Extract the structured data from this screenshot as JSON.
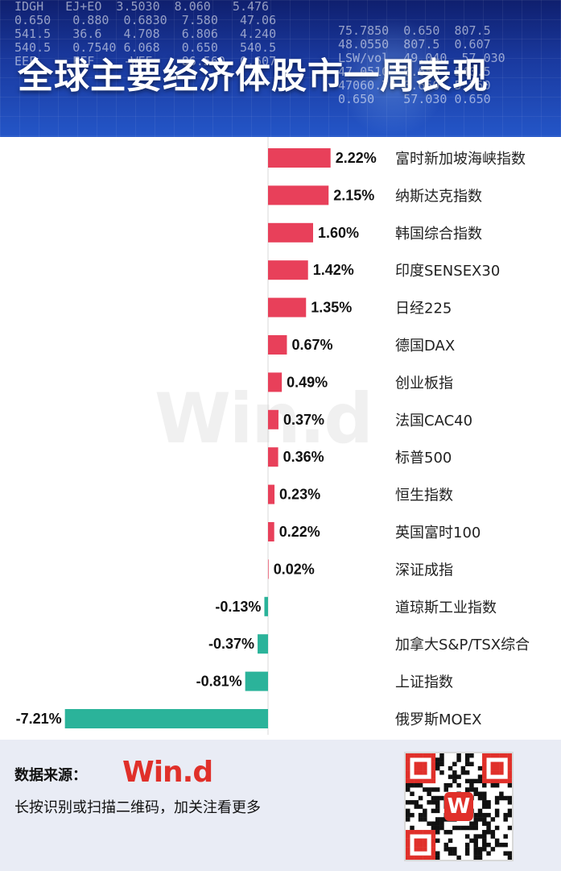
{
  "header": {
    "title": "全球主要经济体股市一周表现"
  },
  "watermark": "Win.d",
  "colors": {
    "positive": "#e8405a",
    "negative": "#2bb39a",
    "header_bg": "#1a3aa0",
    "brand": "#e0302a"
  },
  "chart_data": {
    "type": "bar",
    "orientation": "horizontal",
    "categories": [
      "富时新加坡海峡指数",
      "纳斯达克指数",
      "韩国综合指数",
      "印度SENSEX30",
      "日经225",
      "德国DAX",
      "创业板指",
      "法国CAC40",
      "标普500",
      "恒生指数",
      "英国富时100",
      "深证成指",
      "道琼斯工业指数",
      "加拿大S&P/TSX综合",
      "上证指数",
      "俄罗斯MOEX"
    ],
    "values": [
      2.22,
      2.15,
      1.6,
      1.42,
      1.35,
      0.67,
      0.49,
      0.37,
      0.36,
      0.23,
      0.22,
      0.02,
      -0.13,
      -0.37,
      -0.81,
      -7.21
    ],
    "labels": [
      "2.22%",
      "2.15%",
      "1.60%",
      "1.42%",
      "1.35%",
      "0.67%",
      "0.49%",
      "0.37%",
      "0.36%",
      "0.23%",
      "0.22%",
      "0.02%",
      "-0.13%",
      "-0.37%",
      "-0.81%",
      "-7.21%"
    ],
    "title": "",
    "xlabel": "",
    "ylabel": "",
    "xlim": [
      -7.21,
      3.6
    ],
    "grid": false,
    "legend": "none"
  },
  "footer": {
    "source_label": "数据来源：",
    "brand": "Win.d",
    "cta": "长按识别或扫描二维码，加关注看更多",
    "qr_logo": "W"
  }
}
